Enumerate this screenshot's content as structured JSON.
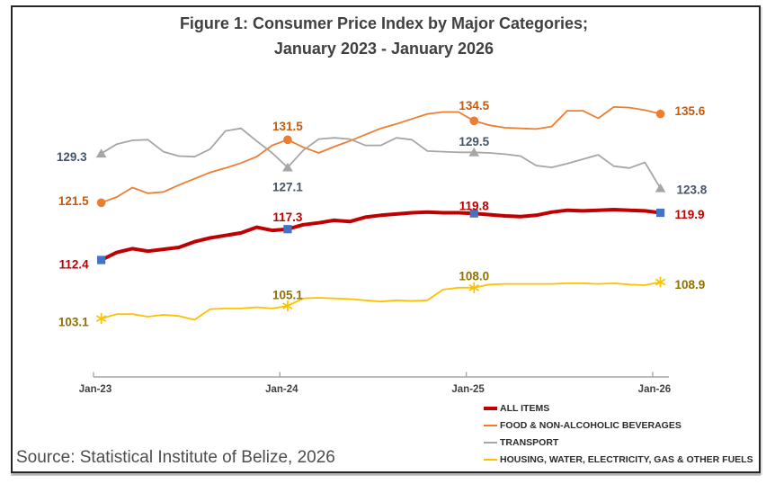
{
  "figure": {
    "title_line1": "Figure 1: Consumer Price Index by Major Categories;",
    "title_line2": "January 2023 - January 2026",
    "source": "Source: Statistical Institute of Belize, 2026"
  },
  "colors": {
    "title_text": "#404040",
    "axis_line": "#A6A6A6",
    "tick_label": "#404040",
    "legend_text": "#2b2b2b",
    "source_text": "#4d4d4d",
    "figure_border": "#262626",
    "all_items_line": "#C00000",
    "food_line": "#ED7D31",
    "transport_line": "#A6A6A6",
    "housing_line": "#FFC000",
    "square_marker": "#4472C4"
  },
  "chart_data": {
    "type": "line",
    "title": "Figure 1: Consumer Price Index by Major Categories; January 2023 - January 2026",
    "x_unit": "month",
    "x_range": [
      "Jan-2023",
      "Jan-2026"
    ],
    "x_tick_labels": [
      "Jan-23",
      "Jan-24",
      "Jan-25",
      "Jan-26"
    ],
    "y_axis_visible": false,
    "gridlines": false,
    "implied_ylim": [
      100,
      138
    ],
    "legend_position": "bottom-right",
    "series": [
      {
        "name": "ALL ITEMS",
        "color": "#C00000",
        "label_color": "#C00000",
        "marker": "square",
        "marker_color": "#4472C4",
        "line_width": 4,
        "values": [
          112.4,
          113.6,
          114.2,
          113.8,
          114.1,
          114.4,
          115.3,
          115.9,
          116.3,
          116.7,
          117.6,
          117.1,
          117.3,
          118.0,
          118.3,
          118.7,
          118.5,
          119.2,
          119.5,
          119.7,
          119.9,
          120.0,
          119.9,
          119.9,
          119.8,
          119.6,
          119.4,
          119.3,
          119.5,
          120.0,
          120.3,
          120.2,
          120.3,
          120.4,
          120.3,
          120.2,
          119.9
        ],
        "labeled_points": [
          {
            "x": "Jan-23",
            "value": 112.4
          },
          {
            "x": "Jan-24",
            "value": 117.3
          },
          {
            "x": "Jan-25",
            "value": 119.8
          },
          {
            "x": "Jan-26",
            "value": 119.9
          }
        ]
      },
      {
        "name": "FOOD & NON-ALCOHOLIC BEVERAGES",
        "color": "#ED7D31",
        "label_color": "#C55A11",
        "marker": "circle",
        "marker_color": "#ED7D31",
        "line_width": 1.8,
        "values": [
          121.5,
          122.4,
          123.9,
          123.0,
          123.2,
          124.3,
          125.3,
          126.3,
          127.0,
          127.8,
          128.8,
          130.6,
          131.5,
          130.3,
          129.4,
          130.4,
          131.3,
          132.3,
          133.3,
          134.0,
          134.8,
          135.6,
          135.9,
          135.9,
          134.5,
          133.8,
          133.4,
          133.3,
          133.2,
          133.6,
          136.1,
          136.1,
          134.9,
          136.7,
          136.6,
          136.2,
          135.6
        ],
        "labeled_points": [
          {
            "x": "Jan-23",
            "value": 121.5
          },
          {
            "x": "Jan-24",
            "value": 131.5
          },
          {
            "x": "Jan-25",
            "value": 134.5
          },
          {
            "x": "Jan-26",
            "value": 135.6
          }
        ]
      },
      {
        "name": "TRANSPORT",
        "color": "#A6A6A6",
        "label_color": "#44546A",
        "marker": "triangle",
        "marker_color": "#A6A6A6",
        "line_width": 1.8,
        "values": [
          129.3,
          130.8,
          131.4,
          131.5,
          129.6,
          128.9,
          128.8,
          130.0,
          132.9,
          133.3,
          131.3,
          129.4,
          127.1,
          129.8,
          131.6,
          131.8,
          131.6,
          130.6,
          130.6,
          131.8,
          131.5,
          129.7,
          129.6,
          129.5,
          129.5,
          129.4,
          129.2,
          128.9,
          127.4,
          127.1,
          127.7,
          128.4,
          129.1,
          127.3,
          127.0,
          127.9,
          123.8
        ],
        "labeled_points": [
          {
            "x": "Jan-23",
            "value": 129.3
          },
          {
            "x": "Jan-24",
            "value": 127.1
          },
          {
            "x": "Jan-25",
            "value": 129.5
          },
          {
            "x": "Jan-26",
            "value": 123.8
          }
        ]
      },
      {
        "name": "HOUSING, WATER, ELECTRICITY, GAS & OTHER FUELS",
        "color": "#FFC000",
        "label_color": "#8F7000",
        "marker": "star",
        "marker_color": "#FFC000",
        "line_width": 1.8,
        "values": [
          103.1,
          103.8,
          103.8,
          103.4,
          103.7,
          103.5,
          102.9,
          104.6,
          104.7,
          104.7,
          104.9,
          104.7,
          105.1,
          106.3,
          106.4,
          106.3,
          106.2,
          106.0,
          105.8,
          106.0,
          105.9,
          106.0,
          107.7,
          108.0,
          108.0,
          108.5,
          108.6,
          108.6,
          108.6,
          108.6,
          108.7,
          108.7,
          108.6,
          108.7,
          108.5,
          108.4,
          108.9
        ],
        "labeled_points": [
          {
            "x": "Jan-23",
            "value": 103.1
          },
          {
            "x": "Jan-24",
            "value": 105.1
          },
          {
            "x": "Jan-25",
            "value": 108.0
          },
          {
            "x": "Jan-26",
            "value": 108.9
          }
        ]
      }
    ]
  }
}
